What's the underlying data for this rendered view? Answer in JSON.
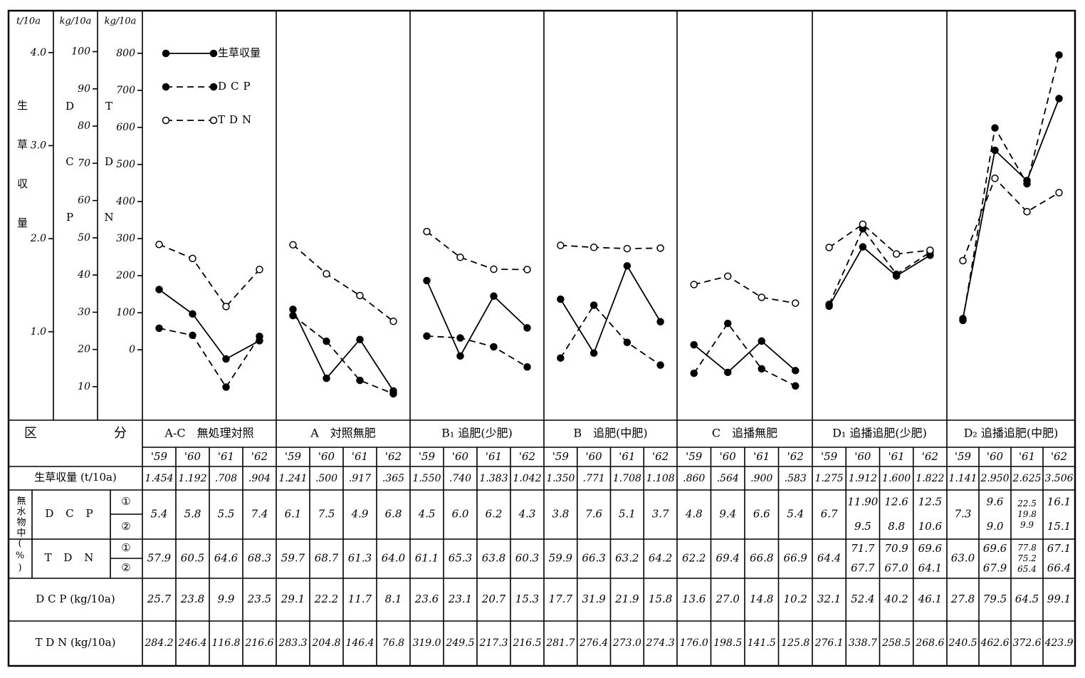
{
  "chart_data": {
    "type": "line",
    "ylabel": "生草収量",
    "yunit": "t/10a",
    "ylim": [
      0.05,
      4.45
    ],
    "yticks": [
      {
        "value": 1,
        "label": "1.0"
      },
      {
        "value": 2,
        "label": "2.0"
      },
      {
        "value": 3,
        "label": "3.0"
      },
      {
        "value": 4,
        "label": "4.0"
      }
    ],
    "y2label": "DCP",
    "y2unit": "kg/10a",
    "y2lim": [
      1,
      111
    ],
    "y2ticks": [
      10,
      20,
      30,
      40,
      50,
      60,
      70,
      80,
      90,
      100
    ],
    "y3label": "TDN",
    "y3unit": "kg/10a",
    "y3lim": [
      -190,
      915
    ],
    "y3ticks": [
      0,
      100,
      200,
      300,
      400,
      500,
      600,
      700,
      800
    ],
    "legend": "upper left",
    "groups": [
      "A-C　無処理対照",
      "A　対照無肥",
      "B₁ 追肥(少肥)",
      "B　追肥(中肥)",
      "C　追播無肥",
      "D₁ 追播追肥(少肥)",
      "D₂ 追播追肥(中肥)"
    ],
    "categories": [
      "'59",
      "'60",
      "'61",
      "'62",
      "'59",
      "'60",
      "'61",
      "'62",
      "'59",
      "'60",
      "'61",
      "'62",
      "'59",
      "'60",
      "'61",
      "'62",
      "'59",
      "'60",
      "'61",
      "'62",
      "'59",
      "'60",
      "'61",
      "'62",
      "'59",
      "'60",
      "'61",
      "'62"
    ],
    "series": [
      {
        "name": "生草収量",
        "color": "#000000",
        "line_style": "solid",
        "marker": "filled",
        "axis": "y",
        "values": [
          1.454,
          1.192,
          0.708,
          0.904,
          1.241,
          0.5,
          0.917,
          0.365,
          1.55,
          0.74,
          1.383,
          1.042,
          1.35,
          0.771,
          1.708,
          1.108,
          0.86,
          0.564,
          0.9,
          0.583,
          1.275,
          1.912,
          1.6,
          1.822,
          1.141,
          2.95,
          2.625,
          3.506
        ],
        "value_labels": [
          "1.454",
          "1.192",
          ".708",
          ".904",
          "1.241",
          ".500",
          ".917",
          ".365",
          "1.550",
          ".740",
          "1.383",
          "1.042",
          "1.350",
          ".771",
          "1.708",
          "1.108",
          ".860",
          ".564",
          ".900",
          ".583",
          "1.275",
          "1.912",
          "1.600",
          "1.822",
          "1.141",
          "2.950",
          "2.625",
          "3.506"
        ]
      },
      {
        "name": "DCP",
        "color": "#000000",
        "line_style": "dashed",
        "marker": "filled",
        "axis": "y2",
        "values": [
          25.7,
          23.8,
          9.9,
          23.5,
          29.1,
          22.2,
          11.7,
          8.1,
          23.6,
          23.1,
          20.7,
          15.3,
          17.7,
          31.9,
          21.9,
          15.8,
          13.6,
          27.0,
          14.8,
          10.2,
          32.1,
          52.4,
          40.2,
          46.1,
          27.8,
          79.5,
          64.5,
          99.1
        ],
        "value_labels": [
          "25.7",
          "23.8",
          "9.9",
          "23.5",
          "29.1",
          "22.2",
          "11.7",
          "8.1",
          "23.6",
          "23.1",
          "20.7",
          "15.3",
          "17.7",
          "31.9",
          "21.9",
          "15.8",
          "13.6",
          "27.0",
          "14.8",
          "10.2",
          "32.1",
          "52.4",
          "40.2",
          "46.1",
          "27.8",
          "79.5",
          "64.5",
          "99.1"
        ]
      },
      {
        "name": "TDN",
        "color": "#000000",
        "line_style": "dashed",
        "marker": "open",
        "axis": "y3",
        "values": [
          284.2,
          246.4,
          116.8,
          216.6,
          283.3,
          204.8,
          146.4,
          76.8,
          319.0,
          249.5,
          217.3,
          216.5,
          281.7,
          276.4,
          273.0,
          274.3,
          176.0,
          198.5,
          141.5,
          125.8,
          276.1,
          338.7,
          258.5,
          268.6,
          240.5,
          462.6,
          372.6,
          423.9
        ],
        "value_labels": [
          "284.2",
          "246.4",
          "116.8",
          "216.6",
          "283.3",
          "204.8",
          "146.4",
          "76.8",
          "319.0",
          "249.5",
          "217.3",
          "216.5",
          "281.7",
          "276.4",
          "273.0",
          "274.3",
          "176.0",
          "198.5",
          "141.5",
          "125.8",
          "276.1",
          "338.7",
          "258.5",
          "268.6",
          "240.5",
          "462.6",
          "372.6",
          "423.9"
        ]
      }
    ]
  },
  "table": {
    "header": "区　　　　　　分",
    "yield_label": "生草収量 (t/10a)",
    "dm_label": "無水物中(%)",
    "dcp_label": "D C P",
    "tdn_label": "T D N",
    "mark1": "①",
    "mark2": "②",
    "dcp_kg_label": "D C P (kg/10a)",
    "tdn_kg_label": "T D N (kg/10a)",
    "dcp_pct": [
      [
        "5.4"
      ],
      [
        "5.8"
      ],
      [
        "5.5"
      ],
      [
        "7.4"
      ],
      [
        "6.1"
      ],
      [
        "7.5"
      ],
      [
        "4.9"
      ],
      [
        "6.8"
      ],
      [
        "4.5"
      ],
      [
        "6.0"
      ],
      [
        "6.2"
      ],
      [
        "4.3"
      ],
      [
        "3.8"
      ],
      [
        "7.6"
      ],
      [
        "5.1"
      ],
      [
        "3.7"
      ],
      [
        "4.8"
      ],
      [
        "9.4"
      ],
      [
        "6.6"
      ],
      [
        "5.4"
      ],
      [
        "6.7"
      ],
      [
        "11.90",
        "9.5"
      ],
      [
        "12.6",
        "8.8"
      ],
      [
        "12.5",
        "10.6"
      ],
      [
        "7.3"
      ],
      [
        "9.6",
        "9.0"
      ],
      [
        "22.5",
        "19.8",
        "9.9"
      ],
      [
        "16.1",
        "15.1"
      ]
    ],
    "tdn_pct": [
      [
        "57.9"
      ],
      [
        "60.5"
      ],
      [
        "64.6"
      ],
      [
        "68.3"
      ],
      [
        "59.7"
      ],
      [
        "68.7"
      ],
      [
        "61.3"
      ],
      [
        "64.0"
      ],
      [
        "61.1"
      ],
      [
        "65.3"
      ],
      [
        "63.8"
      ],
      [
        "60.3"
      ],
      [
        "59.9"
      ],
      [
        "66.3"
      ],
      [
        "63.2"
      ],
      [
        "64.2"
      ],
      [
        "62.2"
      ],
      [
        "69.4"
      ],
      [
        "66.8"
      ],
      [
        "66.9"
      ],
      [
        "64.4"
      ],
      [
        "71.7",
        "67.7"
      ],
      [
        "70.9",
        "67.0"
      ],
      [
        "69.6",
        "64.1"
      ],
      [
        "63.0"
      ],
      [
        "69.6",
        "67.9"
      ],
      [
        "77.8",
        "75.2",
        "65.4"
      ],
      [
        "67.1",
        "66.4"
      ]
    ]
  }
}
